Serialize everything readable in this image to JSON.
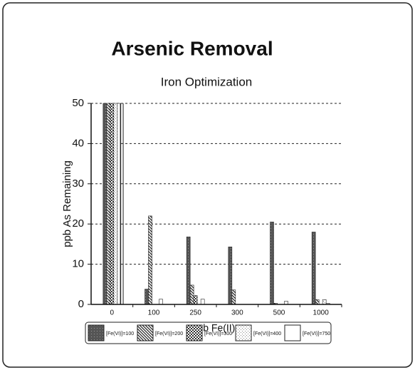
{
  "chart_data": {
    "type": "bar",
    "title": "Arsenic Removal",
    "subtitle": "Iron Optimization",
    "y_label": "ppb As Remaining",
    "x_label": "ppb Fe(II)",
    "categories": [
      "0",
      "100",
      "250",
      "300",
      "500",
      "1000"
    ],
    "series": [
      {
        "name": "[Fe(VI)]=100",
        "color": "#555555",
        "values": [
          50,
          3.8,
          16.8,
          14.3,
          20.5,
          18
        ]
      },
      {
        "name": "[Fe(VI)]=200",
        "color": "#888888",
        "values": [
          50,
          22,
          4.8,
          3.6,
          0.3,
          1.2
        ]
      },
      {
        "name": "[Fe(VI)]=300",
        "color": "#666666",
        "values": [
          50,
          0,
          2.2,
          0,
          0,
          0
        ]
      },
      {
        "name": "[Fe(VI)]=400",
        "color": "#dddddd",
        "values": [
          50,
          0,
          0,
          0,
          0,
          1.2
        ]
      },
      {
        "name": "[Fe(VI)]=750",
        "color": "#ffffff",
        "values": [
          50,
          1.3,
          1.3,
          0,
          0.8,
          0.3
        ]
      }
    ],
    "ylim": [
      0,
      50
    ],
    "yticks": [
      0,
      10,
      20,
      30,
      40,
      50
    ],
    "grid": true
  }
}
